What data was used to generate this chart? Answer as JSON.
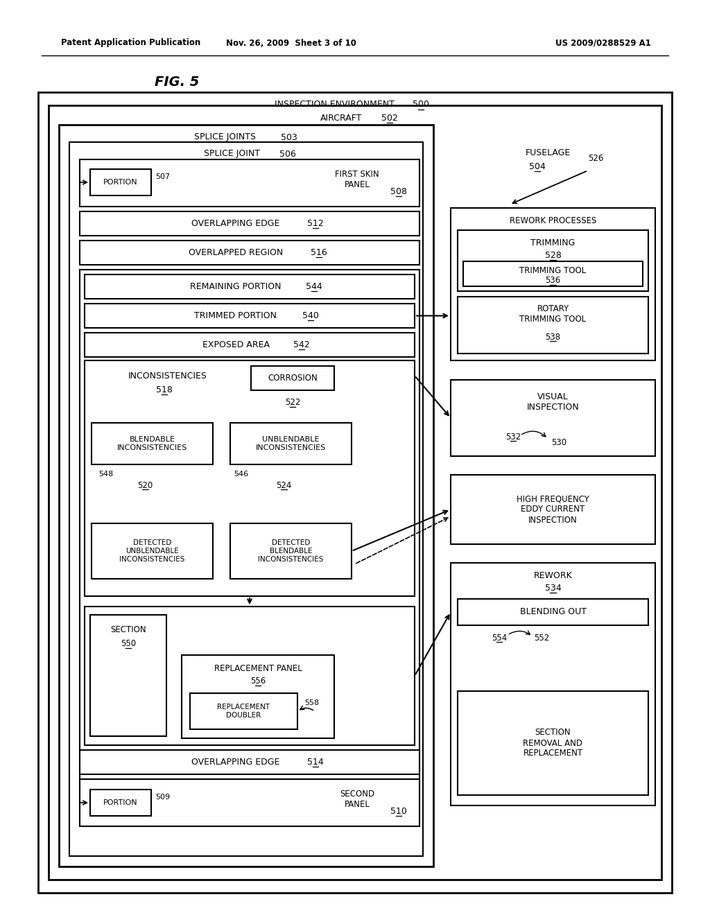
{
  "bg_color": "#ffffff",
  "header_left": "Patent Application Publication",
  "header_mid": "Nov. 26, 2009  Sheet 3 of 10",
  "header_right": "US 2009/0288529 A1",
  "fig_title": "FIG. 5"
}
